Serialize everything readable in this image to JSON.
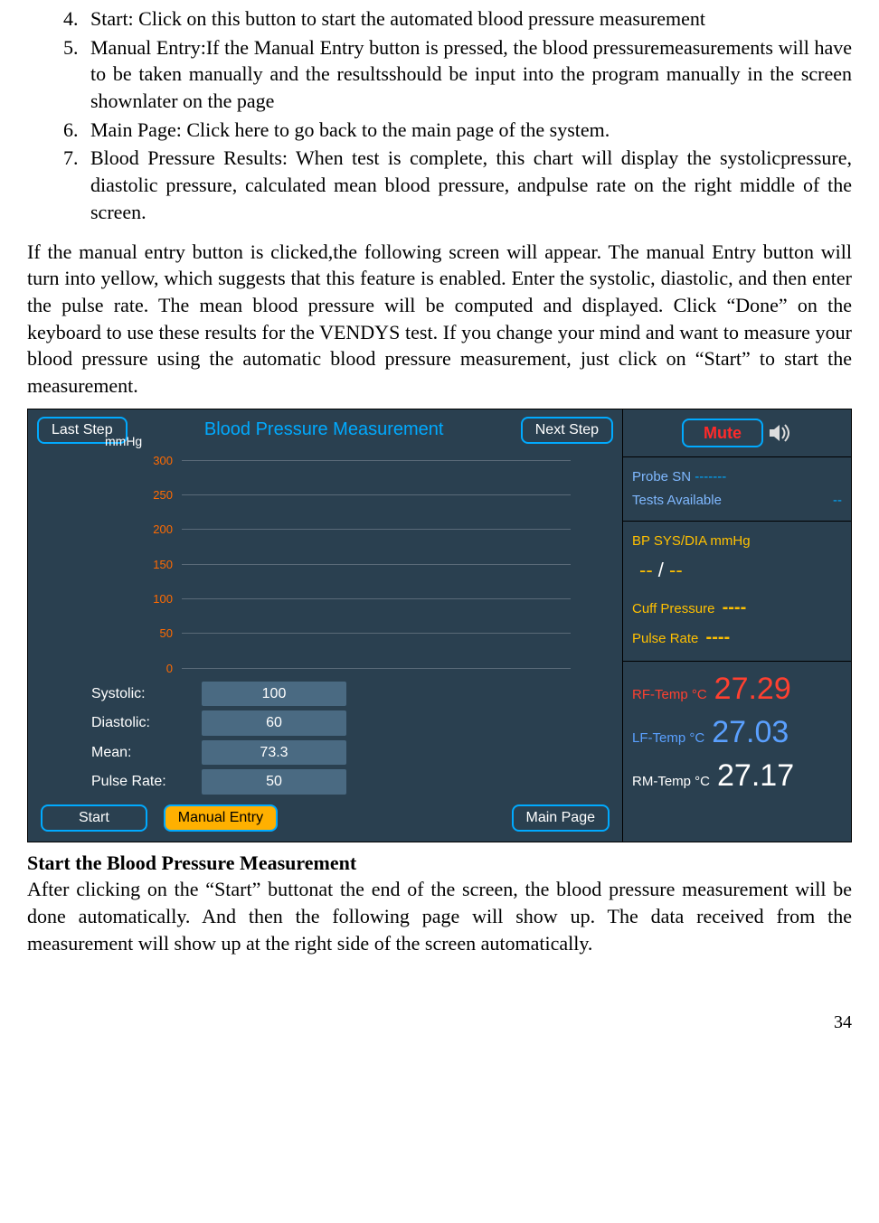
{
  "list": {
    "i4": {
      "num": "4.",
      "text": "Start: Click on this button to start the automated blood pressure measurement"
    },
    "i5": {
      "num": "5.",
      "text": "Manual Entry:If the Manual Entry button is pressed, the blood pressuremeasurements will have to be taken manually and the resultsshould be input into the program manually in the screen shownlater on the page"
    },
    "i6": {
      "num": "6.",
      "text": "Main Page: Click here to go back to the main page of the system."
    },
    "i7": {
      "num": "7.",
      "text": "Blood Pressure Results: When test is complete, this chart will display the systolicpressure, diastolic pressure, calculated mean blood pressure, andpulse rate on the right middle of the screen."
    }
  },
  "para1": "If the manual entry button is clicked,the following screen will appear. The manual Entry button will turn into yellow, which suggests that this feature is enabled. Enter the systolic, diastolic, and then enter the pulse rate. The mean blood pressure will be computed and displayed. Click “Done” on the keyboard to use these results for the VENDYS test. If you change your mind and want to measure your blood pressure using the automatic blood pressure measurement, just click on “Start” to start the measurement.",
  "heading2": "Start the Blood Pressure Measurement",
  "para2": "After clicking on the “Start” buttonat the end of the screen, the blood pressure measurement will be done automatically. And then the following page will show up. The data received from the measurement will show up at the right side of the screen automatically.",
  "page_number": "34",
  "screenshot": {
    "header": {
      "last_step": "Last Step",
      "title": "Blood Pressure Measurement",
      "next_step": "Next Step"
    },
    "chart": {
      "y_title": "mmHg",
      "y_ticks": [
        "300",
        "250",
        "200",
        "150",
        "100",
        "50",
        "0"
      ],
      "axis_color": "#ff6a00",
      "grid_color": "#5a6a78",
      "background": "#2a4050"
    },
    "inputs": {
      "systolic_label": "Systolic:",
      "systolic_value": "100",
      "diastolic_label": "Diastolic:",
      "diastolic_value": "60",
      "mean_label": "Mean:",
      "mean_value": "73.3",
      "pulse_label": "Pulse Rate:",
      "pulse_value": "50"
    },
    "bottom": {
      "start": "Start",
      "manual": "Manual Entry",
      "main_page": "Main Page"
    },
    "right_panel": {
      "mute": "Mute",
      "probe_sn_label": "Probe SN",
      "probe_sn_value": "-------",
      "tests_label": "Tests Available",
      "tests_value": "--",
      "bp_label": "BP SYS/DIA  mmHg",
      "bp_sys": "--",
      "bp_sep": " / ",
      "bp_dia": "--",
      "cuff_label": "Cuff Pressure",
      "cuff_value": "----",
      "pulse_label": "Pulse Rate",
      "pulse_value": "----",
      "rf_label": "RF-Temp  °C",
      "rf_value": "27.29",
      "lf_label": "LF-Temp  °C",
      "lf_value": "27.03",
      "rm_label": "RM-Temp  °C",
      "rm_value": "27.17",
      "colors": {
        "rf": "#ff4030",
        "lf": "#5aa0ff",
        "rm": "#ffffff"
      }
    }
  }
}
